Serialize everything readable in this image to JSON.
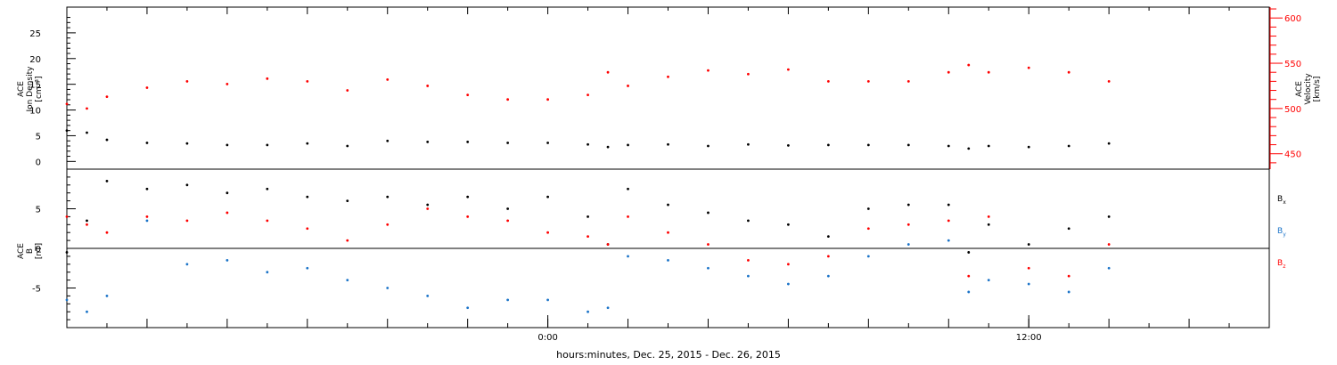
{
  "chart_data": [
    {
      "type": "scatter",
      "panel": "top",
      "title": "",
      "xlabel": "hours:minutes, Dec. 25, 2015 - Dec. 26, 2015",
      "x_unit": "hours from 00:00 Dec. 26, 2015 (UT)",
      "xlim": [
        -12,
        18
      ],
      "x_ticks": [
        {
          "value": 0,
          "label": "0:00"
        },
        {
          "value": 12,
          "label": "12:00"
        }
      ],
      "left_axis": {
        "label_lines": [
          "ACE",
          "Ion Density",
          "[cm⁻³]"
        ],
        "ylim": [
          -1.5,
          30
        ],
        "ticks": [
          0,
          5,
          10,
          15,
          20,
          25
        ],
        "color": "#000000"
      },
      "right_axis": {
        "label_lines": [
          "ACE",
          "Velocity",
          "[km/s]"
        ],
        "ylim": [
          433,
          612
        ],
        "ticks": [
          450,
          500,
          550,
          600
        ],
        "color": "#ff0000"
      },
      "series": [
        {
          "axis": "left",
          "color": "#000000",
          "x": [
            -12,
            -11.5,
            -11,
            -10,
            -9,
            -8,
            -7,
            -6,
            -5,
            -4,
            -3,
            -2,
            -1,
            0,
            1,
            1.5,
            2,
            3,
            4,
            5,
            6,
            7,
            8,
            9,
            10,
            10.5,
            11,
            12,
            13,
            14
          ],
          "y": [
            6,
            5.6,
            4.2,
            3.6,
            3.5,
            3.2,
            3.2,
            3.5,
            3.0,
            4.0,
            3.8,
            3.8,
            3.6,
            3.6,
            3.3,
            2.8,
            3.2,
            3.3,
            3.0,
            3.3,
            3.1,
            3.2,
            3.2,
            3.2,
            3.0,
            2.5,
            3.0,
            2.8,
            3.0,
            3.5
          ]
        },
        {
          "axis": "right",
          "color": "#ff0000",
          "x": [
            -12,
            -11.5,
            -11,
            -10,
            -9,
            -8,
            -7,
            -6,
            -5,
            -4,
            -3,
            -2,
            -1,
            0,
            1,
            1.5,
            2,
            3,
            4,
            5,
            6,
            7,
            8,
            9,
            10,
            10.5,
            11,
            12,
            13,
            14
          ],
          "y": [
            505,
            500,
            513,
            523,
            530,
            527,
            533,
            530,
            520,
            532,
            525,
            515,
            510,
            510,
            515,
            540,
            525,
            535,
            542,
            538,
            543,
            530,
            530,
            530,
            540,
            548,
            540,
            545,
            540,
            530
          ]
        }
      ]
    },
    {
      "type": "scatter",
      "panel": "bottom",
      "title": "",
      "xlim": [
        -12,
        18
      ],
      "y_axis": {
        "label_lines": [
          "ACE",
          "B",
          "[nT]"
        ],
        "ylim": [
          -10,
          10
        ],
        "ticks": [
          -5,
          0,
          5
        ]
      },
      "zero_line": true,
      "series": [
        {
          "name": "Bx",
          "color": "#000000",
          "x": [
            -12,
            -11.5,
            -11,
            -10,
            -9,
            -8,
            -7,
            -6,
            -5,
            -4,
            -3,
            -2,
            -1,
            0,
            1,
            1.5,
            2,
            3,
            4,
            5,
            6,
            7,
            8,
            9,
            10,
            10.5,
            11,
            12,
            13,
            14
          ],
          "y": [
            -0.5,
            3.5,
            8.5,
            7.5,
            8.0,
            7.0,
            7.5,
            6.5,
            6.0,
            6.5,
            5.5,
            6.5,
            5.0,
            6.5,
            4.0,
            0.5,
            7.5,
            5.5,
            4.5,
            3.5,
            3.0,
            1.5,
            5.0,
            5.5,
            5.5,
            -0.5,
            3.0,
            0.5,
            2.5,
            4.0
          ]
        },
        {
          "name": "By",
          "color": "#1a73c8",
          "x": [
            -12,
            -11.5,
            -11,
            -10,
            -9,
            -8,
            -7,
            -6,
            -5,
            -4,
            -3,
            -2,
            -1,
            0,
            1,
            1.5,
            2,
            3,
            4,
            5,
            6,
            7,
            8,
            9,
            10,
            10.5,
            11,
            12,
            13,
            14
          ],
          "y": [
            -6.5,
            -8.0,
            -6.0,
            3.5,
            -2.0,
            -1.5,
            -3.0,
            -2.5,
            -4.0,
            -5.0,
            -6.0,
            -7.5,
            -6.5,
            -6.5,
            -8.0,
            -7.5,
            -1.0,
            -1.5,
            -2.5,
            -3.5,
            -4.5,
            -3.5,
            -1.0,
            0.5,
            1.0,
            -5.5,
            -4.0,
            -4.5,
            -5.5,
            -2.5
          ]
        },
        {
          "name": "Bz",
          "color": "#ff0000",
          "x": [
            -12,
            -11.5,
            -11,
            -10,
            -9,
            -8,
            -7,
            -6,
            -5,
            -4,
            -3,
            -2,
            -1,
            0,
            1,
            1.5,
            2,
            3,
            4,
            5,
            6,
            7,
            8,
            9,
            10,
            10.5,
            11,
            12,
            13,
            14
          ],
          "y": [
            4.0,
            3.0,
            2.0,
            4.0,
            3.5,
            4.5,
            3.5,
            2.5,
            1.0,
            3.0,
            5.0,
            4.0,
            3.5,
            2.0,
            1.5,
            0.5,
            4.0,
            2.0,
            0.5,
            -1.5,
            -2.0,
            -1.0,
            2.5,
            3.0,
            3.5,
            -3.5,
            4.0,
            -2.5,
            -3.5,
            0.5
          ]
        }
      ],
      "legend_position": "right"
    }
  ]
}
